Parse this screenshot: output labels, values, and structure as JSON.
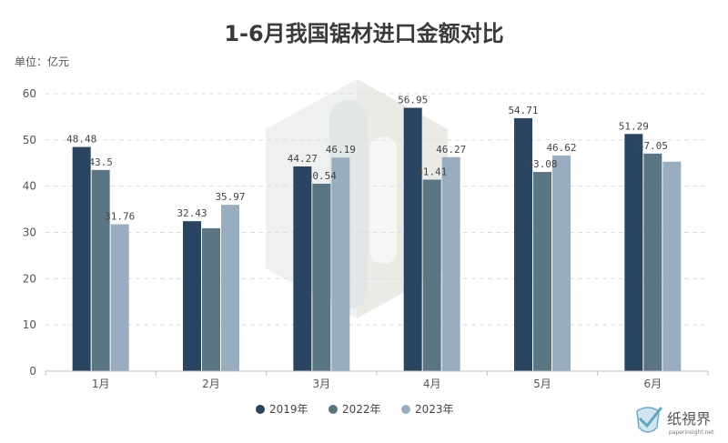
{
  "chart_data": {
    "type": "bar",
    "title": "1-6月我国锯材进口金额对比",
    "unit_label": "单位：亿元",
    "categories": [
      "1月",
      "2月",
      "3月",
      "4月",
      "5月",
      "6月"
    ],
    "series": [
      {
        "name": "2019年",
        "color": "#2a4562",
        "values": [
          48.48,
          32.43,
          44.27,
          56.95,
          54.71,
          51.29
        ],
        "labels": [
          "48.48",
          "32.43",
          "44.27",
          "56.95",
          "54.71",
          "51.29"
        ]
      },
      {
        "name": "2022年",
        "color": "#5b7683",
        "values": [
          43.5,
          30.9,
          40.54,
          41.41,
          43.08,
          47.05
        ],
        "labels": [
          "43.5",
          "",
          "40.54",
          "41.41",
          "43.08",
          "47.05"
        ]
      },
      {
        "name": "2023年",
        "color": "#98adbf",
        "values": [
          31.76,
          35.97,
          46.19,
          46.27,
          46.62,
          45.3
        ],
        "labels": [
          "31.76",
          "35.97",
          "46.19",
          "46.27",
          "46.62",
          ""
        ]
      }
    ],
    "ylim": [
      0,
      60
    ],
    "yticks": [
      0,
      10,
      20,
      30,
      40,
      50,
      60
    ],
    "grid": true,
    "legend_position": "bottom-center"
  },
  "brand": {
    "name": "纸視界",
    "url": "paperinsight.net",
    "logo_icon": "check-shield-icon"
  },
  "colors": {
    "axis": "#bfbfbf",
    "grid": "#dddddd",
    "watermark": "#e3e6e6"
  }
}
